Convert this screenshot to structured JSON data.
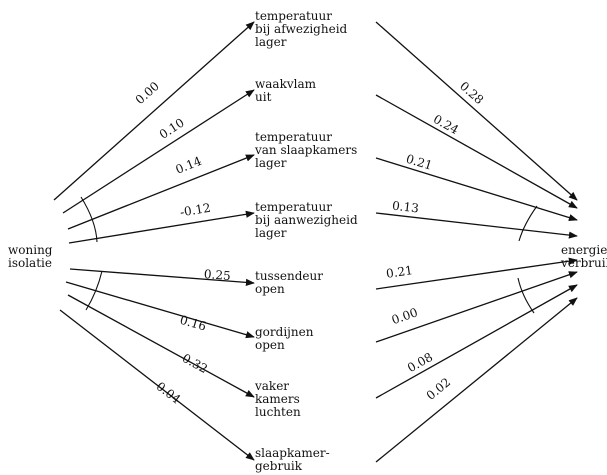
{
  "source": {
    "label": "woning\nisolatie"
  },
  "target": {
    "label": "energie-\nverbruik"
  },
  "arrow_color": "#111111",
  "mediators": [
    {
      "label": "temperatuur\nbij afwezigheid\nlager",
      "coef_in": "0.00",
      "coef_out": "0.28"
    },
    {
      "label": "waakvlam\nuit",
      "coef_in": "0.10",
      "coef_out": "0.24"
    },
    {
      "label": "temperatuur\nvan slaapkamers\nlager",
      "coef_in": "0.14",
      "coef_out": "0.21"
    },
    {
      "label": "temperatuur\nbij aanwezigheid\nlager",
      "coef_in": "-0.12",
      "coef_out": "0.13"
    },
    {
      "label": "tussendeur\nopen",
      "coef_in": "0.25",
      "coef_out": "0.21"
    },
    {
      "label": "gordijnen\nopen",
      "coef_in": "0.16",
      "coef_out": "0.00"
    },
    {
      "label": "vaker\nkamers\nluchten",
      "coef_in": "0.32",
      "coef_out": "0.08"
    },
    {
      "label": "slaapkamer-\ngebruik",
      "coef_in": "0.04",
      "coef_out": "0.02"
    }
  ]
}
